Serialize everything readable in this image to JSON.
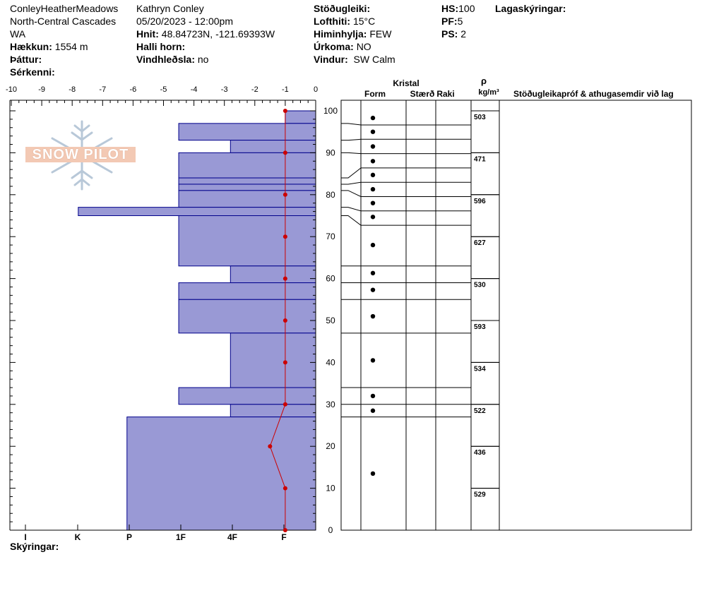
{
  "header": {
    "location": "ConleyHeatherMeadows",
    "region": "North-Central Cascades",
    "state": "WA",
    "elevation_label": "Hækkun:",
    "elevation_value": "1554 m",
    "aspect_label": "Þáttur:",
    "features_label": "Sérkenni:",
    "observer": "Kathryn Conley",
    "datetime": "05/20/2023 - 12:00pm",
    "coords_label": "Hnit:",
    "coords_value": "48.84723N, -121.69393W",
    "slope_label": "Halli horn:",
    "wind_loading_label": "Vindhleðsla:",
    "wind_loading_value": "no",
    "stability_label": "Stöðugleiki:",
    "air_temp_label": "Lofthiti:",
    "air_temp_value": "15°C",
    "sky_label": "Himinhylja:",
    "sky_value": "FEW",
    "precip_label": "Úrkoma:",
    "precip_value": "NO",
    "wind_label": "Vindur:",
    "wind_value": "SW Calm",
    "hs_label": "HS:",
    "hs_value": "100",
    "pf_label": "PF:",
    "pf_value": "5",
    "ps_label": "PS:",
    "ps_value": "2",
    "layer_notes_label": "Lagaskýringar:"
  },
  "logo": {
    "text": "SNOW PILOT"
  },
  "footer": {
    "legend_label": "Skýringar:"
  },
  "columns": {
    "crystal": "Kristal",
    "form": "Form",
    "size": "Stærð",
    "moisture": "Raki",
    "rho": "ρ",
    "density_unit": "kg/m³",
    "comments": "Stöðugleikapróf & athugasemdir við lag"
  },
  "colors": {
    "hardness_fill": "#9999d5",
    "hardness_stroke": "#00008b",
    "temp_line": "#cc0000"
  },
  "icons": {
    "grain_form": "round-grains-dot",
    "logo": "snowflake-icon"
  },
  "chart_data": {
    "type": "snow-profile",
    "temperature_axis": {
      "ticks": [
        -10,
        -9,
        -8,
        -7,
        -6,
        -5,
        -4,
        -3,
        -2,
        -1,
        0
      ],
      "range": [
        -10,
        0
      ]
    },
    "height_axis": {
      "ticks": [
        0,
        10,
        20,
        30,
        40,
        50,
        60,
        70,
        80,
        90,
        100
      ],
      "range": [
        0,
        100
      ]
    },
    "hardness_axis": {
      "labels": [
        "I",
        "K",
        "P",
        "1F",
        "4F",
        "F"
      ]
    },
    "layers": [
      {
        "top": 100,
        "bottom": 97,
        "hardness": 1
      },
      {
        "top": 97,
        "bottom": 93,
        "hardness": 4.5
      },
      {
        "top": 93,
        "bottom": 90,
        "hardness": 2.8
      },
      {
        "top": 90,
        "bottom": 84,
        "hardness": 4.5
      },
      {
        "top": 84,
        "bottom": 82.5,
        "hardness": 4.5
      },
      {
        "top": 82.5,
        "bottom": 81,
        "hardness": 4.5
      },
      {
        "top": 81,
        "bottom": 77,
        "hardness": 4.5
      },
      {
        "top": 77,
        "bottom": 75,
        "hardness": 7.8
      },
      {
        "top": 75,
        "bottom": 63,
        "hardness": 4.5
      },
      {
        "top": 63,
        "bottom": 59,
        "hardness": 2.8
      },
      {
        "top": 59,
        "bottom": 55,
        "hardness": 4.5
      },
      {
        "top": 55,
        "bottom": 47,
        "hardness": 4.5
      },
      {
        "top": 47,
        "bottom": 34,
        "hardness": 2.8
      },
      {
        "top": 34,
        "bottom": 30,
        "hardness": 4.5
      },
      {
        "top": 30,
        "bottom": 27,
        "hardness": 2.8
      },
      {
        "top": 27,
        "bottom": 0,
        "hardness": 6.2
      }
    ],
    "temperature_profile": [
      {
        "height": 100,
        "temp": -1
      },
      {
        "height": 90,
        "temp": -1
      },
      {
        "height": 80,
        "temp": -1
      },
      {
        "height": 70,
        "temp": -1
      },
      {
        "height": 60,
        "temp": -1
      },
      {
        "height": 50,
        "temp": -1
      },
      {
        "height": 40,
        "temp": -1
      },
      {
        "height": 30,
        "temp": -1
      },
      {
        "height": 20,
        "temp": -1.5
      },
      {
        "height": 10,
        "temp": -1
      },
      {
        "height": 0,
        "temp": -1
      }
    ],
    "grain_markers": [
      98.3,
      95,
      91.5,
      88,
      84.7,
      81.3,
      78,
      74.7,
      68,
      61.3,
      57.3,
      51,
      40.5,
      32,
      28.5,
      13.5
    ],
    "density_samples": [
      {
        "top": 100,
        "bottom": 90,
        "value": "503"
      },
      {
        "top": 90,
        "bottom": 80,
        "value": "471"
      },
      {
        "top": 80,
        "bottom": 70,
        "value": "596"
      },
      {
        "top": 70,
        "bottom": 60,
        "value": "627"
      },
      {
        "top": 60,
        "bottom": 50,
        "value": "530"
      },
      {
        "top": 50,
        "bottom": 40,
        "value": "593"
      },
      {
        "top": 40,
        "bottom": 30,
        "value": "534"
      },
      {
        "top": 30,
        "bottom": 20,
        "value": "522"
      },
      {
        "top": 20,
        "bottom": 10,
        "value": "436"
      },
      {
        "top": 10,
        "bottom": 0,
        "value": "529"
      }
    ]
  }
}
